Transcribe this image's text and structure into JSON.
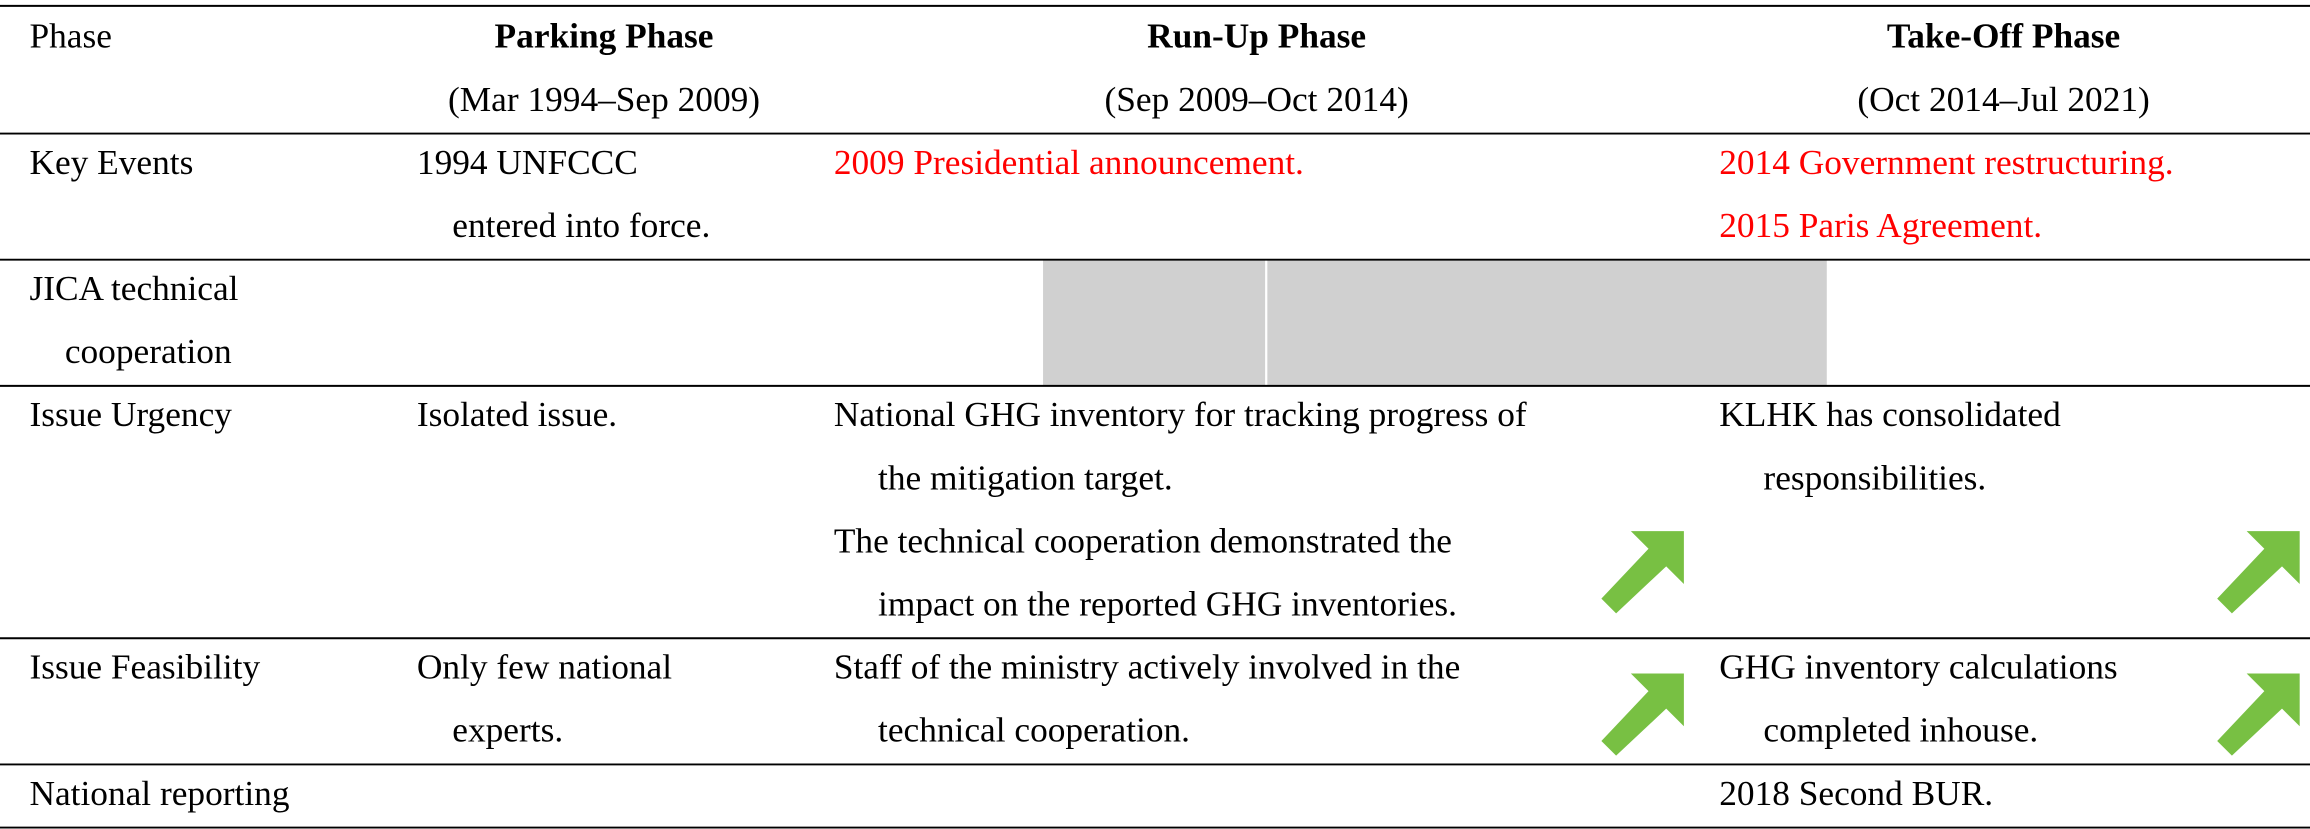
{
  "header": {
    "label": "Phase",
    "phases": [
      {
        "title": "Parking Phase",
        "period": "(Mar 1994–Sep 2009)"
      },
      {
        "title": "Run-Up Phase",
        "period": "(Sep 2009–Oct 2014)"
      },
      {
        "title": "Take-Off Phase",
        "period": "(Oct 2014–Jul 2021)"
      }
    ]
  },
  "rows": [
    {
      "label": [
        "Key Events"
      ],
      "cells": [
        {
          "paragraphs": [
            [
              "1994 UNFCCC",
              "entered into force."
            ]
          ]
        },
        {
          "paragraphs": [
            [
              "2009 Presidential announcement."
            ]
          ],
          "color": "#ff0000"
        },
        {
          "paragraphs": [
            [
              "2014 Government restructuring."
            ],
            [
              "2015 Paris Agreement."
            ]
          ],
          "color": "#ff0000"
        }
      ]
    },
    {
      "label": [
        "JICA technical",
        "cooperation"
      ],
      "cells": [
        null,
        null,
        null
      ]
    },
    {
      "label": [
        "Issue Urgency"
      ],
      "cells": [
        {
          "paragraphs": [
            [
              "Isolated issue."
            ]
          ]
        },
        {
          "paragraphs": [
            [
              "National GHG inventory for tracking progress of",
              "the mitigation target."
            ],
            [
              "The technical cooperation demonstrated the",
              "impact on the reported GHG inventories."
            ]
          ]
        },
        {
          "paragraphs": [
            [
              "KLHK has consolidated",
              "responsibilities."
            ]
          ]
        }
      ]
    },
    {
      "label": [
        "Issue Feasibility"
      ],
      "cells": [
        {
          "paragraphs": [
            [
              "Only few national",
              "experts."
            ]
          ]
        },
        {
          "paragraphs": [
            [
              "Staff of the ministry actively involved in the",
              "technical cooperation."
            ]
          ]
        },
        {
          "paragraphs": [
            [
              "GHG inventory calculations",
              "completed inhouse."
            ]
          ]
        }
      ]
    },
    {
      "label": [
        "National reporting"
      ],
      "cells": [
        null,
        null,
        {
          "paragraphs": [
            [
              "2018 Second BUR."
            ]
          ]
        }
      ]
    }
  ]
}
